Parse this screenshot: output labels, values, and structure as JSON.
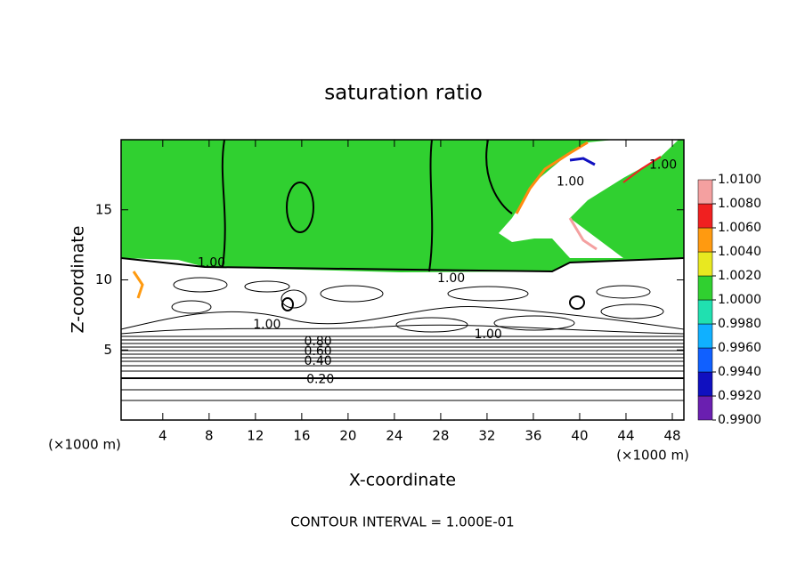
{
  "chart_data": {
    "type": "contour",
    "title": "saturation ratio",
    "x_label": "X-coordinate",
    "y_label": "Z-coordinate",
    "x_unit_label": "(×1000 m)",
    "y_unit_label": "(×1000 m)",
    "footer": "CONTOUR INTERVAL = 1.000E-01",
    "xlim": [
      0.4,
      49
    ],
    "ylim": [
      0,
      20
    ],
    "xticks": [
      4,
      8,
      12,
      16,
      20,
      24,
      28,
      32,
      36,
      40,
      44,
      48
    ],
    "yticks": [
      5,
      10,
      15
    ],
    "colorbar": {
      "levels": [
        {
          "value": 0.99,
          "label": "0.9900"
        },
        {
          "value": 0.992,
          "label": "0.9920"
        },
        {
          "value": 0.994,
          "label": "0.9940"
        },
        {
          "value": 0.996,
          "label": "0.9960"
        },
        {
          "value": 0.998,
          "label": "0.9980"
        },
        {
          "value": 1.0,
          "label": "1.0000"
        },
        {
          "value": 1.002,
          "label": "1.0020"
        },
        {
          "value": 1.004,
          "label": "1.0040"
        },
        {
          "value": 1.006,
          "label": "1.0060"
        },
        {
          "value": 1.008,
          "label": "1.0080"
        },
        {
          "value": 1.01,
          "label": "1.0100"
        }
      ],
      "colors": [
        "#6a1fb0",
        "#1010c0",
        "#1060ff",
        "#10b0ff",
        "#20e0b0",
        "#30d030",
        "#e8e820",
        "#ff9a10",
        "#f02020",
        "#f4a0a0"
      ]
    },
    "contour_labels": [
      {
        "label": "1.00",
        "x": 8.2,
        "y": 11.2
      },
      {
        "label": "1.00",
        "x": 39.2,
        "y": 17.0
      },
      {
        "label": "1.00",
        "x": 47.2,
        "y": 18.2
      },
      {
        "label": "1.00",
        "x": 13.0,
        "y": 6.8
      },
      {
        "label": "1.00",
        "x": 28.9,
        "y": 10.1
      },
      {
        "label": "1.00",
        "x": 32.1,
        "y": 6.1
      },
      {
        "label": "0.80",
        "x": 17.4,
        "y": 5.6
      },
      {
        "label": "0.60",
        "x": 17.4,
        "y": 4.9
      },
      {
        "label": "0.40",
        "x": 17.4,
        "y": 4.2
      },
      {
        "label": "0.20",
        "x": 17.6,
        "y": 2.9
      }
    ]
  }
}
